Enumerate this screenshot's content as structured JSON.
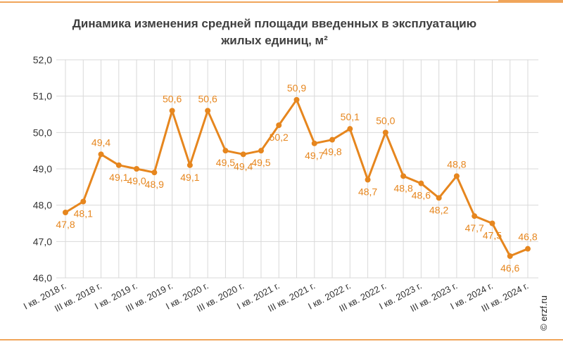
{
  "page": {
    "title_line1": "Динамика изменения средней площади введенных в эксплуатацию",
    "title_line2": "жилых единиц, м²",
    "credit": "© erzf.ru"
  },
  "colors": {
    "series": "#e6861e",
    "grid": "#d9d9d9",
    "axis_text": "#333333",
    "accent_rule": "#f0a55a"
  },
  "chart_data": {
    "type": "line",
    "title": "Динамика изменения средней площади введенных в эксплуатацию жилых единиц, м²",
    "ylim": [
      46.0,
      52.0
    ],
    "y_ticks": [
      "46,0",
      "47,0",
      "48,0",
      "49,0",
      "50,0",
      "51,0",
      "52,0"
    ],
    "x_tick_labels": [
      "I кв. 2018 г.",
      "III кв. 2018 г.",
      "I кв. 2019 г.",
      "III кв. 2019 г.",
      "I кв. 2020 г.",
      "III кв. 2020 г.",
      "I кв. 2021 г.",
      "III кв. 2021 г.",
      "I кв. 2022 г.",
      "III кв. 2022 г.",
      "I кв. 2023 г.",
      "III кв. 2023 г.",
      "I кв. 2024 г.",
      "III кв. 2024 г."
    ],
    "grid": true,
    "series": [
      {
        "values": [
          47.8,
          48.1,
          49.4,
          49.1,
          49.0,
          48.9,
          50.6,
          49.1,
          50.6,
          49.5,
          49.4,
          49.5,
          50.2,
          50.9,
          49.7,
          49.8,
          50.1,
          48.7,
          50.0,
          48.8,
          48.6,
          48.2,
          48.8,
          47.7,
          47.5,
          46.6,
          46.8
        ],
        "labels": [
          "47,8",
          "48,1",
          "49,4",
          "49,1",
          "49,0",
          "48,9",
          "50,6",
          "49,1",
          "50,6",
          "49,5",
          "49,4",
          "49,5",
          "50,2",
          "50,9",
          "49,7",
          "49,8",
          "50,1",
          "48,7",
          "50,0",
          "48,8",
          "48,6",
          "48,2",
          "48,8",
          "47,7",
          "47,5",
          "46,6",
          "46,8"
        ]
      }
    ]
  }
}
